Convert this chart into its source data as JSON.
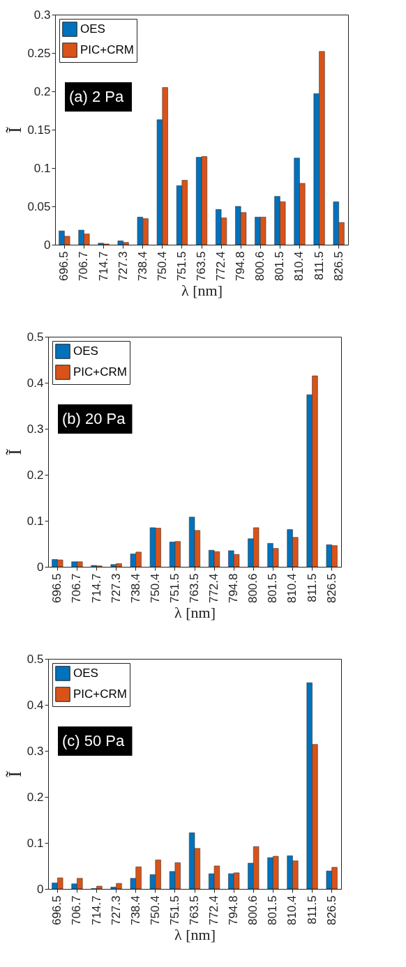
{
  "chart_data": [
    {
      "type": "bar",
      "categories": [
        "696.5",
        "706.7",
        "714.7",
        "727.3",
        "738.4",
        "750.4",
        "751.5",
        "763.5",
        "772.4",
        "794.8",
        "800.6",
        "801.5",
        "810.4",
        "811.5",
        "826.5"
      ],
      "series": [
        {
          "name": "OES",
          "color": "#0072bd",
          "values": [
            0.018,
            0.019,
            0.002,
            0.005,
            0.036,
            0.163,
            0.077,
            0.114,
            0.046,
            0.05,
            0.036,
            0.063,
            0.113,
            0.197,
            0.056
          ]
        },
        {
          "name": "PIC+CRM",
          "color": "#d95319",
          "values": [
            0.011,
            0.014,
            0.001,
            0.003,
            0.034,
            0.205,
            0.084,
            0.115,
            0.035,
            0.042,
            0.036,
            0.056,
            0.08,
            0.252,
            0.029
          ]
        }
      ],
      "ylim": [
        0,
        0.3
      ],
      "yticks": [
        0,
        0.05,
        0.1,
        0.15,
        0.2,
        0.25,
        0.3
      ],
      "xlabel": "λ [nm]",
      "ylabel": "Ĩ",
      "legend": "top left",
      "annotations": [
        "(a) 2 Pa"
      ]
    },
    {
      "type": "bar",
      "categories": [
        "696.5",
        "706.7",
        "714.7",
        "727.3",
        "738.4",
        "750.4",
        "751.5",
        "763.5",
        "772.4",
        "794.8",
        "800.6",
        "801.5",
        "810.4",
        "811.5",
        "826.5"
      ],
      "series": [
        {
          "name": "OES",
          "color": "#0072bd",
          "values": [
            0.016,
            0.011,
            0.003,
            0.005,
            0.028,
            0.085,
            0.054,
            0.108,
            0.036,
            0.035,
            0.061,
            0.051,
            0.081,
            0.374,
            0.048
          ]
        },
        {
          "name": "PIC+CRM",
          "color": "#d95319",
          "values": [
            0.015,
            0.011,
            0.002,
            0.007,
            0.032,
            0.084,
            0.055,
            0.079,
            0.033,
            0.027,
            0.085,
            0.04,
            0.064,
            0.415,
            0.046
          ]
        }
      ],
      "ylim": [
        0,
        0.5
      ],
      "yticks": [
        0,
        0.1,
        0.2,
        0.3,
        0.4,
        0.5
      ],
      "xlabel": "λ [nm]",
      "ylabel": "Ĩ",
      "legend": "top left",
      "annotations": [
        "(b) 20 Pa"
      ]
    },
    {
      "type": "bar",
      "categories": [
        "696.5",
        "706.7",
        "714.7",
        "727.3",
        "738.4",
        "750.4",
        "751.5",
        "763.5",
        "772.4",
        "794.8",
        "800.6",
        "801.5",
        "810.4",
        "811.5",
        "826.5"
      ],
      "series": [
        {
          "name": "OES",
          "color": "#0072bd",
          "values": [
            0.013,
            0.011,
            0.001,
            0.004,
            0.023,
            0.031,
            0.038,
            0.122,
            0.033,
            0.033,
            0.056,
            0.068,
            0.072,
            0.448,
            0.039
          ]
        },
        {
          "name": "PIC+CRM",
          "color": "#d95319",
          "values": [
            0.024,
            0.023,
            0.006,
            0.012,
            0.048,
            0.063,
            0.057,
            0.088,
            0.05,
            0.035,
            0.092,
            0.071,
            0.061,
            0.314,
            0.047
          ]
        }
      ],
      "ylim": [
        0,
        0.5
      ],
      "yticks": [
        0,
        0.1,
        0.2,
        0.3,
        0.4,
        0.5
      ],
      "xlabel": "λ [nm]",
      "ylabel": "Ĩ",
      "legend": "top left",
      "annotations": [
        "(c) 50 Pa"
      ]
    }
  ]
}
